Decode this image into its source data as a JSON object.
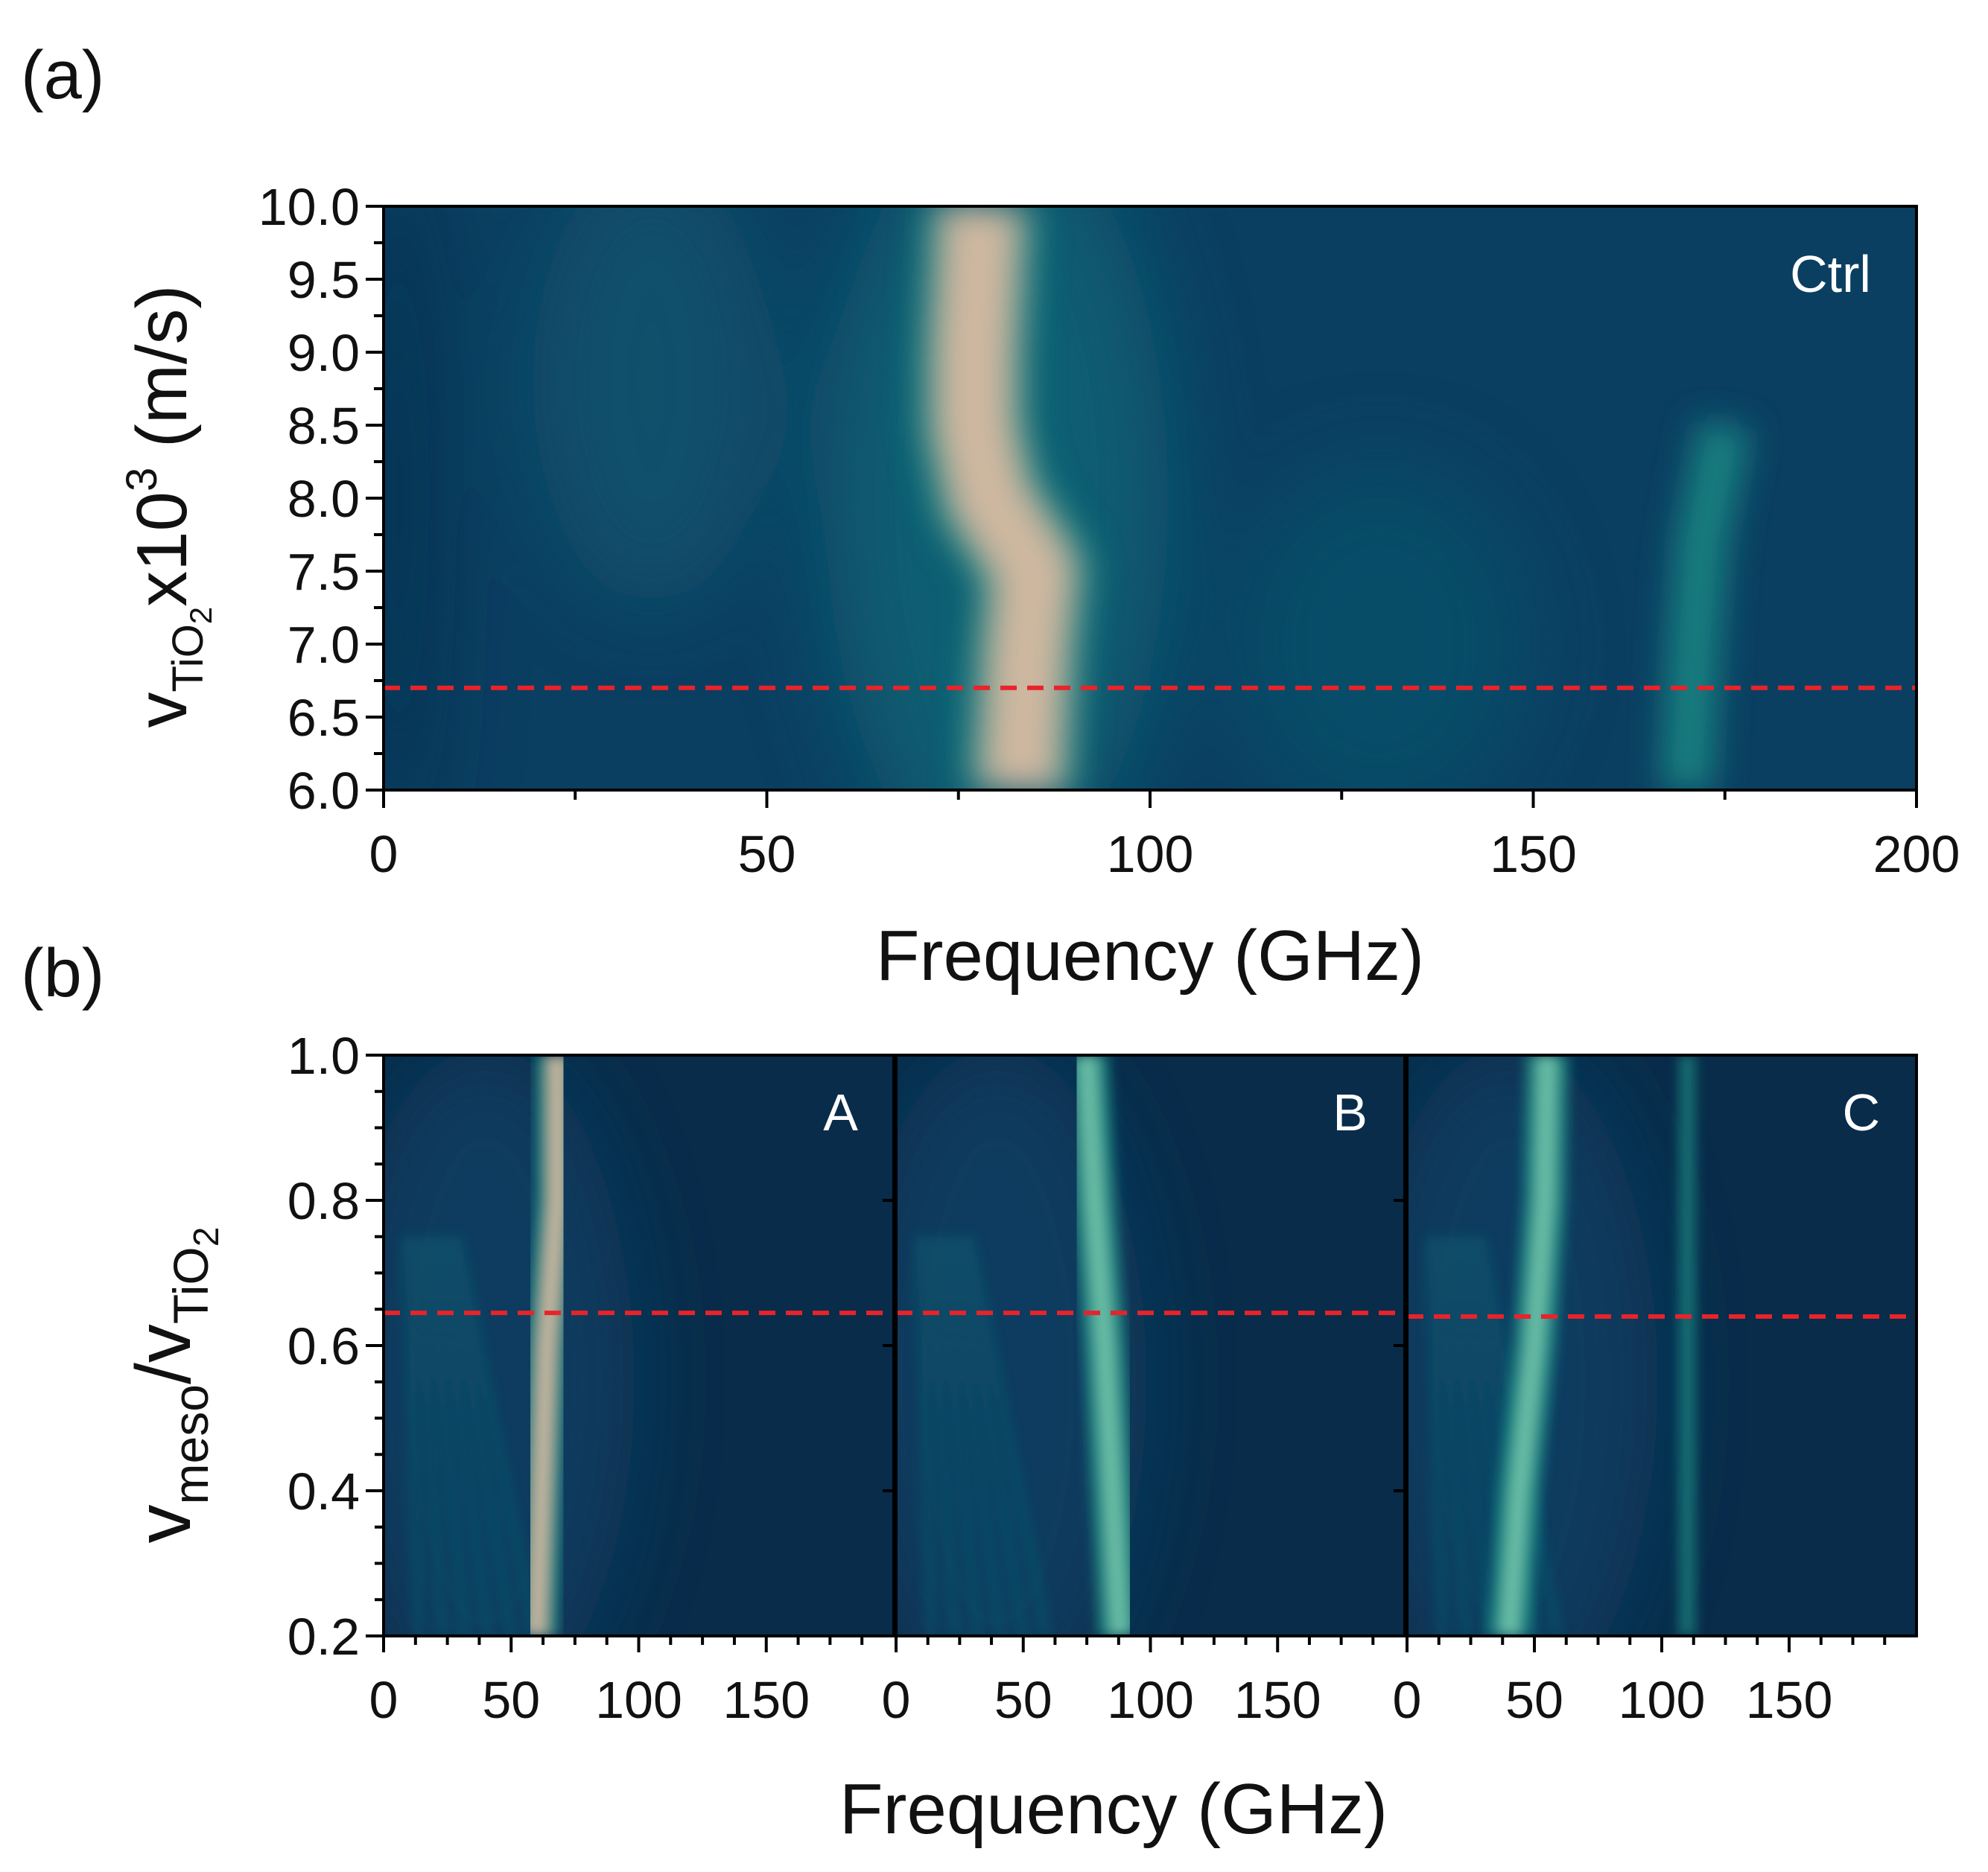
{
  "colors": {
    "base": "#0b3f62",
    "dark": "#082c4a",
    "mid": "#0f6676",
    "teal": "#1f9a8c",
    "peak": "#cfb8a0",
    "refline": "#e8232a"
  },
  "panels": {
    "a": {
      "label": "(a)"
    },
    "b": {
      "label": "(b)"
    }
  },
  "chart_data": [
    {
      "id": "a",
      "type": "heatmap",
      "title": "",
      "xlabel": "Frequency (GHz)",
      "ylabel": {
        "main": "v",
        "sub": "TiO",
        "subsub": "2",
        "rest": "x10",
        "sup": "3",
        "unit": " (m/s)"
      },
      "xlim": [
        0,
        200
      ],
      "ylim": [
        6.0,
        10.0
      ],
      "xticks": [
        0,
        50,
        100,
        150,
        200
      ],
      "xtick_labels": [
        "0",
        "50",
        "100",
        "150",
        "200"
      ],
      "yticks": [
        6.0,
        6.5,
        7.0,
        7.5,
        8.0,
        8.5,
        9.0,
        9.5,
        10.0
      ],
      "ytick_labels": [
        "6.0",
        "6.5",
        "7.0",
        "7.5",
        "8.0",
        "8.5",
        "9.0",
        "9.5",
        "10.0"
      ],
      "annotation": "Ctrl",
      "reference_line_y": 6.7,
      "ridges": [
        {
          "label": "main resonance",
          "points": [
            [
              78,
              10.0
            ],
            [
              77,
              9.0
            ],
            [
              77,
              8.5
            ],
            [
              79,
              8.0
            ],
            [
              85,
              7.5
            ],
            [
              84,
              7.0
            ],
            [
              83,
              6.0
            ]
          ],
          "intensity": "max"
        },
        {
          "label": "secondary band",
          "points": [
            [
              170,
              6.0
            ],
            [
              171,
              7.0
            ],
            [
              172,
              7.7
            ],
            [
              175,
              8.5
            ]
          ],
          "intensity": "medium"
        }
      ]
    },
    {
      "id": "b",
      "type": "heatmap",
      "xlabel": "Frequency (GHz)",
      "ylabel": {
        "main": "v",
        "sub": "meso",
        "slash": "/v",
        "sub2": "TiO",
        "subsub2": "2"
      },
      "ylim": [
        0.2,
        1.0
      ],
      "yticks": [
        0.2,
        0.4,
        0.6,
        0.8,
        1.0
      ],
      "ytick_labels": [
        "0.2",
        "0.4",
        "0.6",
        "0.8",
        "1.0"
      ],
      "subplots": [
        {
          "annotation": "A",
          "xlim": [
            0,
            200
          ],
          "xticks": [
            0,
            50,
            100,
            150
          ],
          "xtick_labels": [
            "0",
            "50",
            "100",
            "150"
          ],
          "reference_line_y": 0.645,
          "ridges": [
            {
              "points": [
                [
                  60,
                  0.2
                ],
                [
                  62,
                  0.4
                ],
                [
                  64,
                  0.6
                ],
                [
                  68,
                  0.8
                ],
                [
                  68,
                  1.0
                ]
              ],
              "intensity": "max"
            }
          ]
        },
        {
          "annotation": "B",
          "xlim": [
            0,
            200
          ],
          "xticks": [
            0,
            50,
            100,
            150
          ],
          "xtick_labels": [
            "0",
            "50",
            "100",
            "150"
          ],
          "reference_line_y": 0.645,
          "ridges": [
            {
              "points": [
                [
                  88,
                  0.2
                ],
                [
                  85,
                  0.4
                ],
                [
                  82,
                  0.6
                ],
                [
                  78,
                  0.8
                ],
                [
                  75,
                  1.0
                ]
              ],
              "intensity": "medium"
            }
          ]
        },
        {
          "annotation": "C",
          "xlim": [
            0,
            200
          ],
          "xticks": [
            0,
            50,
            100,
            150
          ],
          "xtick_labels": [
            "0",
            "50",
            "100",
            "150"
          ],
          "reference_line_y": 0.64,
          "ridges": [
            {
              "points": [
                [
                  40,
                  0.2
                ],
                [
                  44,
                  0.4
                ],
                [
                  50,
                  0.6
                ],
                [
                  54,
                  0.8
                ],
                [
                  55,
                  1.0
                ]
              ],
              "intensity": "high"
            },
            {
              "points": [
                [
                  110,
                  0.2
                ],
                [
                  110,
                  0.6
                ],
                [
                  110,
                  1.0
                ]
              ],
              "intensity": "low"
            }
          ]
        }
      ]
    }
  ]
}
